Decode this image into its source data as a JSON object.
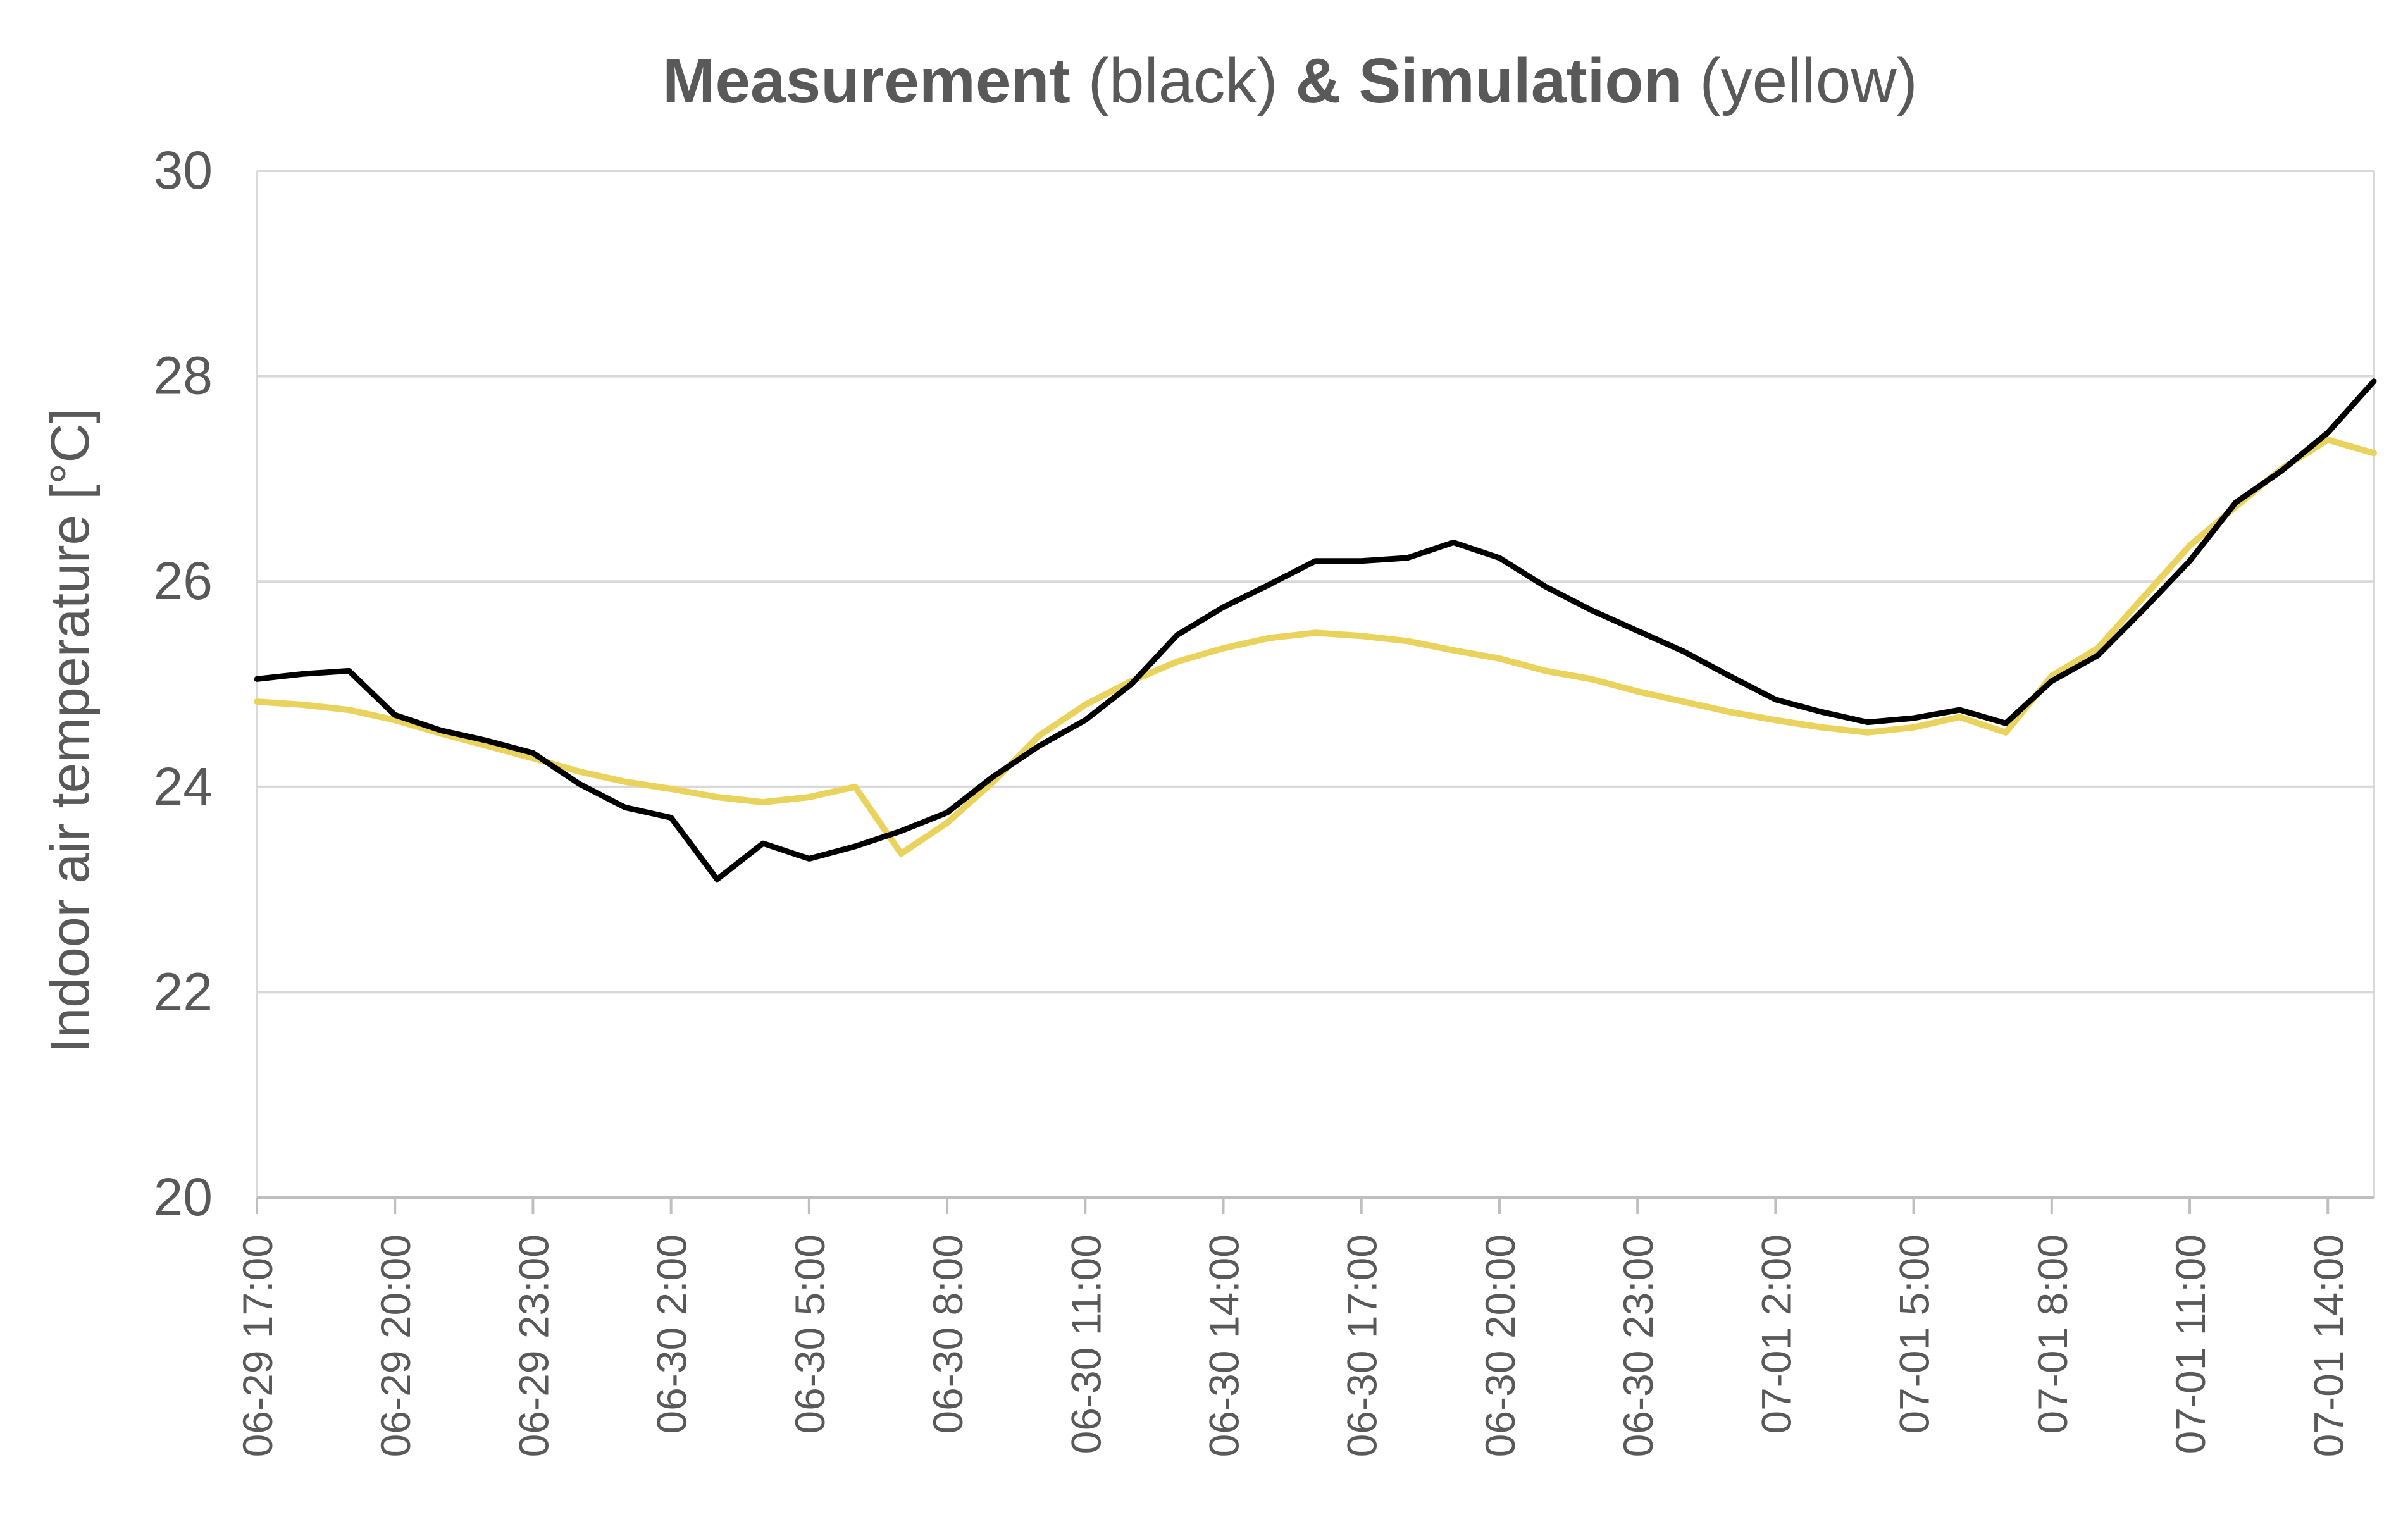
{
  "chart_data": {
    "type": "line",
    "title": {
      "part1": "Measurement",
      "part2": " (black) ",
      "part3": "& Simulation",
      "part4": " (yellow)"
    },
    "xlabel": "",
    "ylabel": "Indoor air temperature [°C]",
    "ylim": [
      20,
      30
    ],
    "yticks": [
      20,
      22,
      24,
      26,
      28,
      30
    ],
    "grid": true,
    "xrange_hours": [
      0,
      46
    ],
    "xtick_labels": [
      "06-29 17:00",
      "06-29 20:00",
      "06-29 23:00",
      "06-30 2:00",
      "06-30 5:00",
      "06-30 8:00",
      "06-30 11:00",
      "06-30 14:00",
      "06-30 17:00",
      "06-30 20:00",
      "06-30 23:00",
      "07-01 2:00",
      "07-01 5:00",
      "07-01 8:00",
      "07-01 11:00",
      "07-01 14:00"
    ],
    "xtick_hours": [
      0,
      3,
      6,
      9,
      12,
      15,
      18,
      21,
      24,
      27,
      30,
      33,
      36,
      39,
      42,
      45
    ],
    "series": [
      {
        "name": "Measurement",
        "color": "#000000",
        "x": [
          0,
          1,
          2,
          3,
          4,
          5,
          6,
          7,
          8,
          9,
          10,
          11,
          12,
          13,
          14,
          15,
          16,
          17,
          18,
          19,
          20,
          21,
          22,
          23,
          24,
          25,
          26,
          27,
          28,
          29,
          30,
          31,
          32,
          33,
          34,
          35,
          36,
          37,
          38,
          39,
          40,
          41,
          42,
          43,
          44,
          45,
          46
        ],
        "y": [
          25.05,
          25.1,
          25.13,
          24.7,
          24.55,
          24.45,
          24.33,
          24.03,
          23.8,
          23.7,
          23.1,
          23.45,
          23.3,
          23.42,
          23.57,
          23.75,
          24.1,
          24.4,
          24.65,
          25.0,
          25.48,
          25.75,
          25.97,
          26.2,
          26.2,
          26.23,
          26.38,
          26.23,
          25.95,
          25.72,
          25.52,
          25.32,
          25.08,
          24.85,
          24.73,
          24.63,
          24.67,
          24.75,
          24.62,
          25.03,
          25.28,
          25.73,
          26.2,
          26.77,
          27.08,
          27.45,
          27.95
        ]
      },
      {
        "name": "Simulation",
        "color": "#e9d35c",
        "x": [
          0,
          1,
          2,
          3,
          4,
          5,
          6,
          7,
          8,
          9,
          10,
          11,
          12,
          13,
          14,
          15,
          16,
          17,
          18,
          19,
          20,
          21,
          22,
          23,
          24,
          25,
          26,
          27,
          28,
          29,
          30,
          31,
          32,
          33,
          34,
          35,
          36,
          37,
          38,
          39,
          40,
          41,
          42,
          43,
          44,
          45,
          46
        ],
        "y": [
          24.83,
          24.8,
          24.75,
          24.65,
          24.52,
          24.4,
          24.28,
          24.15,
          24.05,
          23.98,
          23.9,
          23.85,
          23.9,
          24.0,
          23.35,
          23.65,
          24.05,
          24.5,
          24.8,
          25.03,
          25.22,
          25.35,
          25.45,
          25.5,
          25.47,
          25.42,
          25.33,
          25.25,
          25.13,
          25.05,
          24.93,
          24.83,
          24.73,
          24.65,
          24.58,
          24.53,
          24.58,
          24.68,
          24.53,
          25.08,
          25.35,
          25.85,
          26.35,
          26.73,
          27.1,
          27.38,
          27.25
        ]
      }
    ]
  }
}
